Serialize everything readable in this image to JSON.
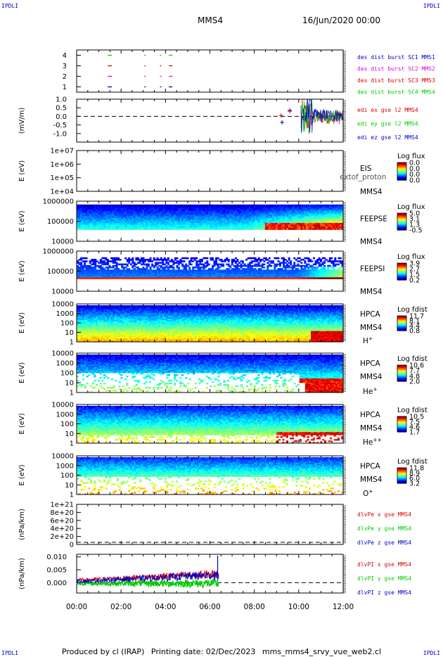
{
  "corners": {
    "tl": "IPDLI",
    "tr": "IPDLI",
    "bl": "IPDLI",
    "br": "IPDLI"
  },
  "header": {
    "spacecraft": "MMS4",
    "datetime": "16/Jun/2020 00:00"
  },
  "footer": {
    "produced": "Produced by cl (IRAP)",
    "printing": "Printing date: 02/Dec/2023",
    "filename": "mms_mms4_srvy_vue_web2.cl"
  },
  "colors": {
    "red": "#dd0000",
    "green": "#00cc00",
    "blue": "#0000cc",
    "magenta": "#dd00dd"
  },
  "chart_data": [
    {
      "type": "line",
      "panel": "burst",
      "ylim": [
        0.5,
        4.5
      ],
      "yticks": [
        "1",
        "2",
        "3",
        "4"
      ],
      "series": [
        {
          "name": "des dist burst SC1 MMS1",
          "color": "#0000cc",
          "y": 1,
          "x": [
            1.4,
            3.05,
            3.75,
            4.15
          ]
        },
        {
          "name": "des dist burst SC2 MMS2",
          "color": "#dd00dd",
          "y": 2,
          "x": [
            1.4,
            3.05,
            3.75,
            4.15
          ]
        },
        {
          "name": "des dist burst SC3 MMS3",
          "color": "#dd0000",
          "y": 3,
          "x": [
            1.4,
            3.05,
            3.75,
            4.15
          ]
        },
        {
          "name": "des dist burst SC4 MMS4",
          "color": "#00cc00",
          "y": 4,
          "x": [
            1.4,
            3.05,
            3.75,
            4.15
          ]
        }
      ]
    },
    {
      "type": "line",
      "panel": "edi",
      "ylabel": "(mV/m)",
      "ylim": [
        -1.5,
        1.0
      ],
      "yticks": [
        "1.0",
        "0.5",
        "0.0",
        "-0.5",
        "-1.0"
      ],
      "series": [
        {
          "name": "edi ex gse l2 MMS4",
          "color": "#dd0000"
        },
        {
          "name": "edi ey gse l2 MMS4",
          "color": "#00cc00"
        },
        {
          "name": "edi ez gse l2 MMS4",
          "color": "#0000cc"
        }
      ],
      "start_hour": 10.1
    },
    {
      "type": "heatmap",
      "panel": "eis",
      "ylabel": "E (eV)",
      "yticks": [
        "1e+07",
        "1e+06",
        "1e+05",
        "1e+04"
      ],
      "right_labels": [
        "EIS",
        "MMS4"
      ],
      "overlay_text": "extof_proton",
      "colorbar_title": "Log flux",
      "colorbar_ticks": [
        "0.0",
        "0.0",
        "0.0",
        "0.0"
      ]
    },
    {
      "type": "heatmap",
      "panel": "feepse",
      "ylabel": "E (eV)",
      "yticks": [
        "1000000",
        "100000",
        "10000"
      ],
      "right_labels": [
        "FEEPSE",
        "MMS4"
      ],
      "colorbar_title": "Log flux",
      "colorbar_ticks": [
        "5.0",
        "3.1",
        "1.3",
        "-0.5"
      ]
    },
    {
      "type": "heatmap",
      "panel": "feepsi",
      "ylabel": "E (eV)",
      "yticks": [
        "1000000",
        "100000",
        "10000"
      ],
      "right_labels": [
        "FEEPSI",
        "MMS4"
      ],
      "colorbar_title": "Log flux",
      "colorbar_ticks": [
        "3.9",
        "2.7",
        "1.5",
        "0.2"
      ]
    },
    {
      "type": "heatmap",
      "panel": "hpca_h",
      "ylabel": "E (eV)",
      "yticks": [
        "10000",
        "1000",
        "100",
        "10",
        "1"
      ],
      "right_labels": [
        "HPCA",
        "MMS4",
        "H+"
      ],
      "colorbar_title": "Log fdist",
      "colorbar_ticks": [
        "11.7",
        "8.1",
        "4.4",
        "0.8"
      ]
    },
    {
      "type": "heatmap",
      "panel": "hpca_he",
      "ylabel": "E (eV)",
      "yticks": [
        "10000",
        "1000",
        "100",
        "10",
        "1"
      ],
      "right_labels": [
        "HPCA",
        "MMS4",
        "He+"
      ],
      "colorbar_title": "Log fdist",
      "colorbar_ticks": [
        "10.6",
        "7.7",
        "4.8",
        "2.0"
      ]
    },
    {
      "type": "heatmap",
      "panel": "hpca_he2",
      "ylabel": "E (eV)",
      "yticks": [
        "10000",
        "1000",
        "100",
        "10",
        "1"
      ],
      "right_labels": [
        "HPCA",
        "MMS4",
        "He++"
      ],
      "colorbar_title": "Log fdist",
      "colorbar_ticks": [
        "10.5",
        "7.5",
        "4.6",
        "1.7"
      ]
    },
    {
      "type": "heatmap",
      "panel": "hpca_o",
      "ylabel": "E (eV)",
      "yticks": [
        "10000",
        "1000",
        "100",
        "10",
        "1"
      ],
      "right_labels": [
        "HPCA",
        "MMS4",
        "O+"
      ],
      "colorbar_title": "Log fdist",
      "colorbar_ticks": [
        "11.8",
        "8.9",
        "6.0",
        "3.2"
      ]
    },
    {
      "type": "line",
      "panel": "dlvpe",
      "ylabel": "(nPa/km)",
      "yticks": [
        "1e+21",
        "8e+20",
        "6e+20",
        "4e+20",
        "2e+20",
        "0"
      ],
      "ylim": [
        0,
        1e+21
      ],
      "series": [
        {
          "name": "dlvPe x gse MMS4",
          "color": "#dd0000"
        },
        {
          "name": "dlvPe y gse MMS4",
          "color": "#00cc00"
        },
        {
          "name": "dlvPe z gse MMS4",
          "color": "#0000cc"
        }
      ]
    },
    {
      "type": "line",
      "panel": "dlvpi",
      "ylabel": "(nPa/km)",
      "yticks": [
        "0.010",
        "0.005",
        "0.000"
      ],
      "ylim": [
        -0.004,
        0.011
      ],
      "series": [
        {
          "name": "dlvPI x gse MMS4",
          "color": "#dd0000"
        },
        {
          "name": "dlvPI y gse MMS4",
          "color": "#00cc00"
        },
        {
          "name": "dlvPI z gse MMS4",
          "color": "#0000cc"
        }
      ],
      "end_hour": 6.4
    }
  ],
  "time_axis": {
    "ticks": [
      "00:00",
      "02:00",
      "04:00",
      "06:00",
      "08:00",
      "10:00",
      "12:00"
    ],
    "range_hours": [
      0,
      12
    ]
  }
}
